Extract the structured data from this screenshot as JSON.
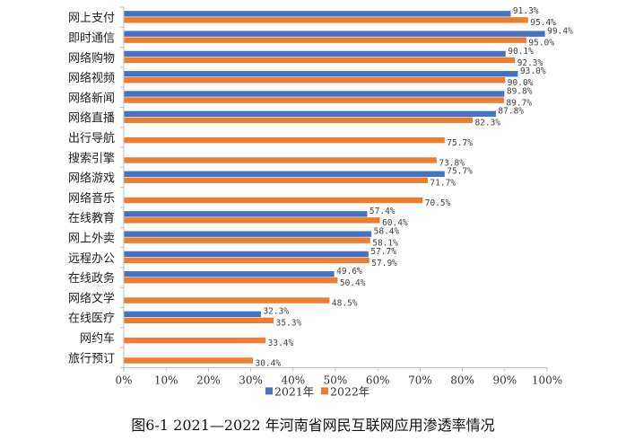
{
  "caption": "图6-1 2021—2022 年河南省网民互联网应用渗透率情况",
  "colors": {
    "s2021": "#4472c4",
    "s2022": "#ed7d31",
    "axis": "#bfbfbf",
    "grid": "#e6e6e6"
  },
  "chart_data": {
    "type": "bar",
    "orientation": "horizontal",
    "title": "",
    "xlabel": "",
    "ylabel": "",
    "xlim": [
      0,
      100
    ],
    "x_ticks": [
      "0%",
      "10%",
      "20%",
      "30%",
      "40%",
      "50%",
      "60%",
      "70%",
      "80%",
      "90%",
      "100%"
    ],
    "grid": false,
    "legend_position": "bottom",
    "categories": [
      "网上支付",
      "即时通信",
      "网络购物",
      "网络视频",
      "网络新闻",
      "网络直播",
      "出行导航",
      "搜索引擎",
      "网络游戏",
      "网络音乐",
      "在线教育",
      "网上外卖",
      "远程办公",
      "在线政务",
      "网络文学",
      "在线医疗",
      "网约车",
      "旅行预订"
    ],
    "series": [
      {
        "name": "2021年",
        "values": [
          91.3,
          99.4,
          90.1,
          93.0,
          89.8,
          87.8,
          null,
          null,
          75.7,
          null,
          57.4,
          58.4,
          57.7,
          49.6,
          null,
          32.3,
          null,
          null
        ]
      },
      {
        "name": "2022年",
        "values": [
          95.4,
          95.0,
          92.3,
          90.0,
          89.7,
          82.3,
          75.7,
          73.8,
          71.7,
          70.5,
          60.4,
          58.1,
          57.9,
          50.4,
          48.5,
          35.3,
          33.4,
          30.4
        ]
      }
    ]
  }
}
